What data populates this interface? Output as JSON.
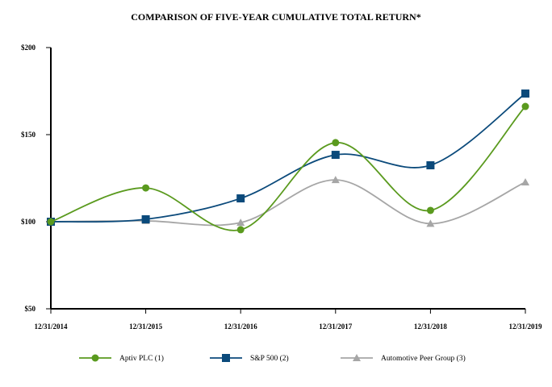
{
  "chart_data": {
    "type": "line",
    "title": "COMPARISON OF FIVE-YEAR CUMULATIVE TOTAL RETURN*",
    "categories": [
      "12/31/2014",
      "12/31/2015",
      "12/31/2016",
      "12/31/2017",
      "12/31/2018",
      "12/31/2019"
    ],
    "y_ticks": [
      "$50",
      "$100",
      "$150",
      "$200"
    ],
    "ylim": [
      50,
      200
    ],
    "grid": false,
    "legend_placement": "bottom",
    "series": [
      {
        "name": "Aptiv PLC (1)",
        "color": "#5a9a1e",
        "marker": "circle",
        "values": [
          100,
          119.4,
          95.4,
          145.4,
          106.5,
          166.2
        ]
      },
      {
        "name": "S&P 500 (2)",
        "color": "#0b4a7b",
        "marker": "square",
        "values": [
          100,
          101.4,
          113.4,
          138.4,
          132.4,
          173.6
        ]
      },
      {
        "name": "Automotive Peer Group (3)",
        "color": "#a6a6a6",
        "marker": "triangle",
        "values": [
          100,
          100.5,
          99.5,
          124.0,
          98.9,
          122.7
        ]
      }
    ]
  }
}
